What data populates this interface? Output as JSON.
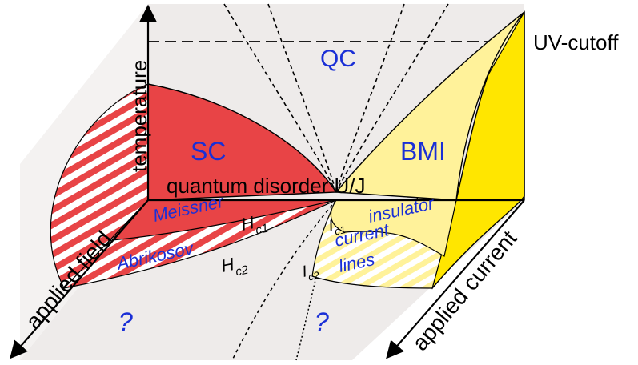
{
  "labels": {
    "qc": "QC",
    "uv_cutoff": "UV-cutoff",
    "sc": "SC",
    "bmi": "BMI",
    "temperature": "temperature",
    "quantum_disorder": "quantum disorder U/J",
    "meissner": "Meissner",
    "abrikosov": "Abrikosov",
    "hc1_base": "H",
    "hc1_sub": "c1",
    "hc2_base": "H",
    "hc2_sub": "c2",
    "insulator": "insulator",
    "current": "current",
    "lines": "lines",
    "ic1_base": "I",
    "ic1_sub": "c1",
    "ic2_base": "I",
    "ic2_sub": "c2",
    "applied_field": "applied field",
    "applied_current": "applied current",
    "unknown_left": "?",
    "unknown_right": "?"
  },
  "colors": {
    "sc_red": "#e84446",
    "stripe_red": "#e84446",
    "bmi_yellow": "#fff29a",
    "yellow_bright": "#ffe600",
    "yellow_pale": "#fff7b8",
    "wall_gray": "#eeebea",
    "label_blue": "#1a2fd6"
  }
}
